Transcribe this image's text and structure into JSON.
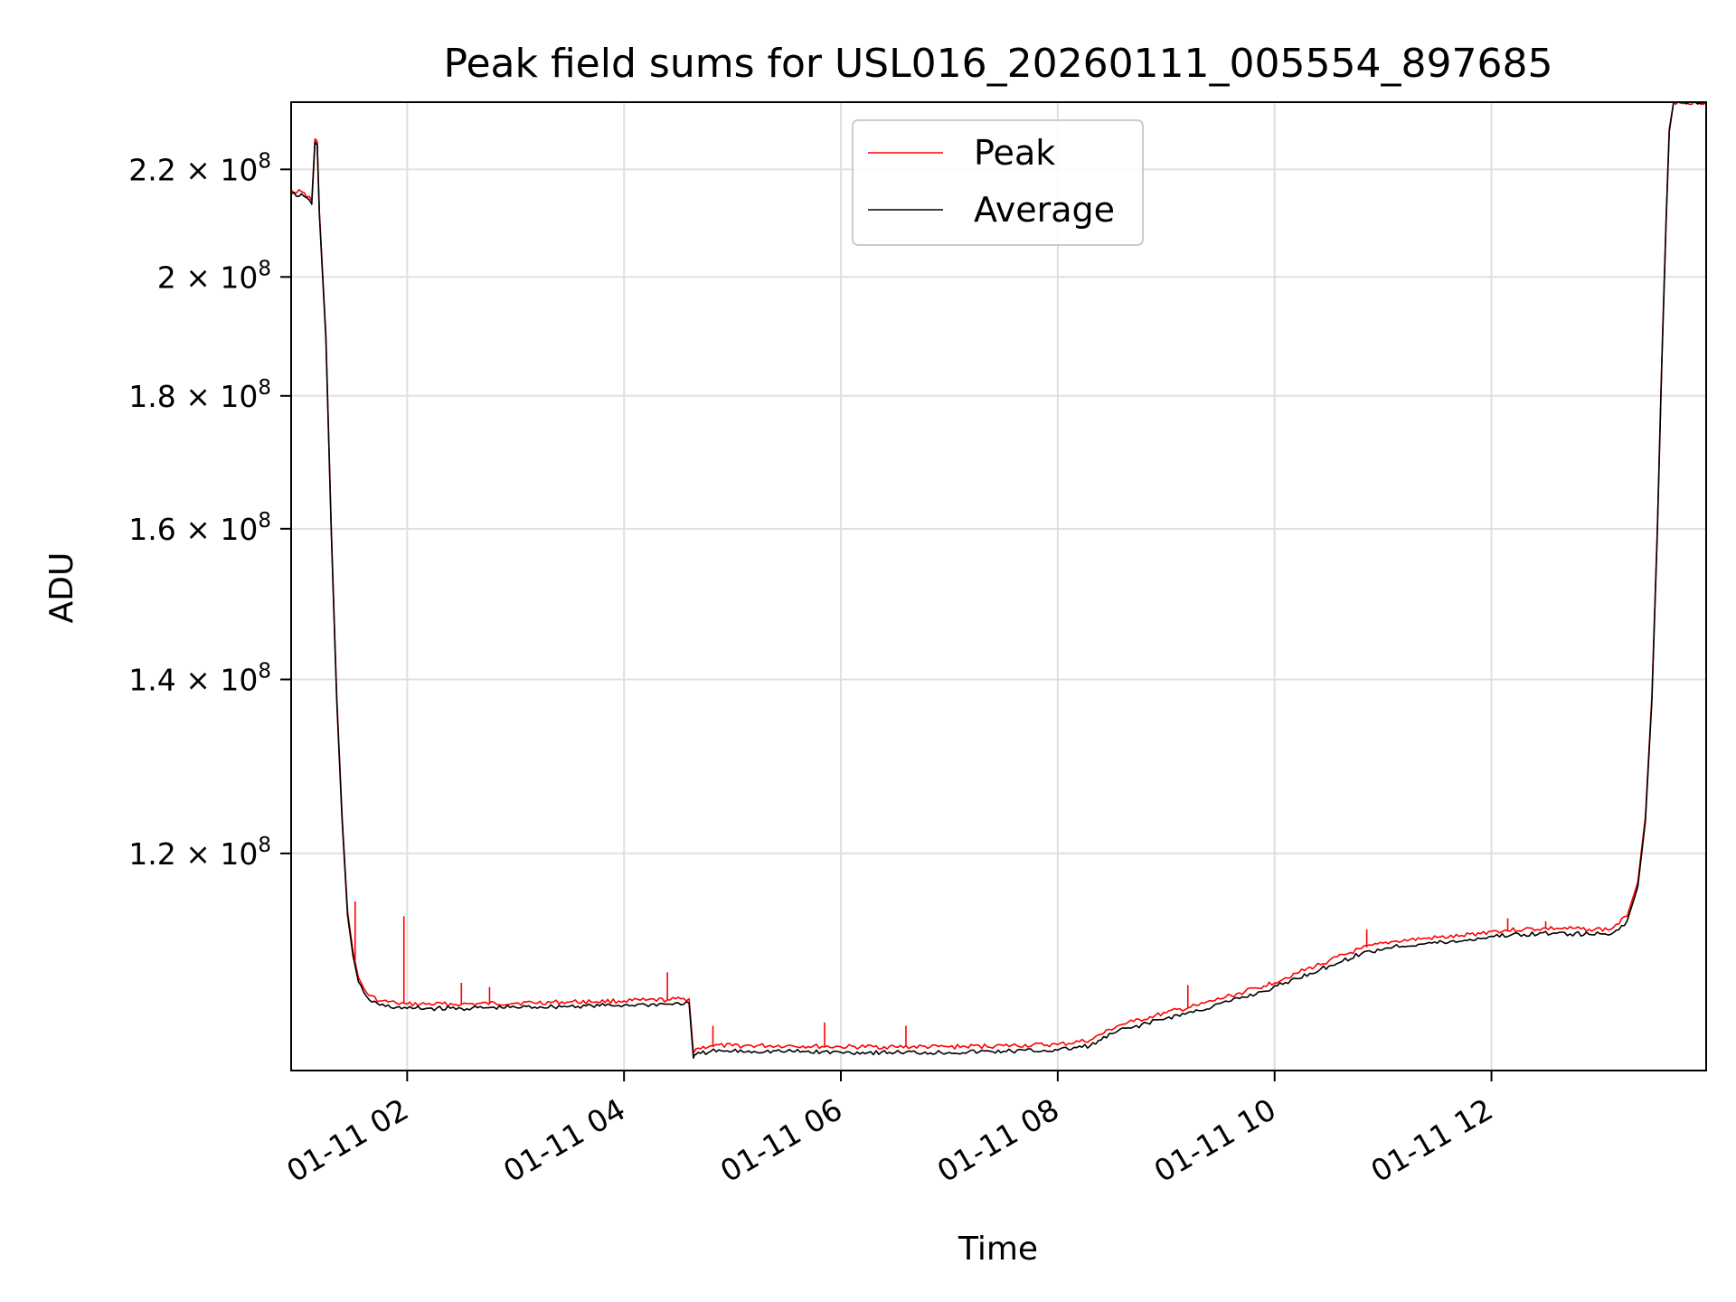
{
  "chart_data": {
    "type": "line",
    "title": "Peak field sums for USL016_20260111_005554_897685",
    "xlabel": "Time",
    "ylabel": "ADU",
    "yscale": "log",
    "grid": true,
    "legend_position": "top-center",
    "x_tick_labels": [
      "01-11 02",
      "01-11 04",
      "01-11 06",
      "01-11 08",
      "01-11 10",
      "01-11 12"
    ],
    "x_ticks_hours": [
      2,
      4,
      6,
      8,
      10,
      12
    ],
    "xlim_hours": [
      0.93,
      13.98
    ],
    "y_ticks": [
      {
        "value": 120000000,
        "mantissa": "1.2",
        "exp": "8"
      },
      {
        "value": 140000000,
        "mantissa": "1.4",
        "exp": "8"
      },
      {
        "value": 160000000,
        "mantissa": "1.6",
        "exp": "8"
      },
      {
        "value": 180000000,
        "mantissa": "1.8",
        "exp": "8"
      },
      {
        "value": 200000000,
        "mantissa": "2",
        "exp": "8"
      },
      {
        "value": 220000000,
        "mantissa": "2.2",
        "exp": "8"
      }
    ],
    "ylim": [
      99000000,
      233500000
    ],
    "series": [
      {
        "name": "Peak",
        "color": "#ff0000",
        "x": [
          0.93,
          1.05,
          1.12,
          1.15,
          1.17,
          1.19,
          1.25,
          1.3,
          1.35,
          1.4,
          1.45,
          1.5,
          1.55,
          1.6,
          1.65,
          1.75,
          1.9,
          2.0,
          2.5,
          3.0,
          3.5,
          4.0,
          4.2,
          4.4,
          4.6,
          4.64,
          4.66,
          4.8,
          5.0,
          5.5,
          6.0,
          6.5,
          7.0,
          7.5,
          8.0,
          8.3,
          8.55,
          8.7,
          9.0,
          9.3,
          9.6,
          9.9,
          10.2,
          10.5,
          10.8,
          11.1,
          11.4,
          11.7,
          12.0,
          12.3,
          12.6,
          12.9,
          13.1,
          13.25,
          13.35,
          13.42,
          13.48,
          13.53,
          13.57,
          13.61,
          13.64,
          13.68,
          13.72,
          13.98
        ],
        "y": [
          216000000,
          215500000,
          214000000,
          226000000,
          225500000,
          212000000,
          190000000,
          160000000,
          138000000,
          124000000,
          114000000,
          110000000,
          107500000,
          106500000,
          105800000,
          105300000,
          105100000,
          105000000,
          105000000,
          105100000,
          105200000,
          105300000,
          105350000,
          105400000,
          105500000,
          100600000,
          100900000,
          101200000,
          101200000,
          101200000,
          101100000,
          101100000,
          101100000,
          101200000,
          101300000,
          101700000,
          103000000,
          103400000,
          104200000,
          104900000,
          105800000,
          106700000,
          107900000,
          109100000,
          110300000,
          111000000,
          111300000,
          111500000,
          112000000,
          112200000,
          112300000,
          112200000,
          112200000,
          113500000,
          117000000,
          124000000,
          138000000,
          160000000,
          185000000,
          210000000,
          228000000,
          233500000,
          233500000,
          233500000
        ]
      },
      {
        "name": "Average",
        "color": "#000000",
        "x": [
          0.93,
          1.05,
          1.12,
          1.15,
          1.17,
          1.19,
          1.25,
          1.3,
          1.35,
          1.4,
          1.45,
          1.5,
          1.55,
          1.6,
          1.65,
          1.75,
          1.9,
          2.0,
          2.5,
          3.0,
          3.5,
          4.0,
          4.2,
          4.4,
          4.6,
          4.64,
          4.66,
          4.8,
          5.0,
          5.5,
          6.0,
          6.5,
          7.0,
          7.5,
          8.0,
          8.3,
          8.55,
          8.7,
          9.0,
          9.3,
          9.6,
          9.9,
          10.2,
          10.5,
          10.8,
          11.1,
          11.4,
          11.7,
          12.0,
          12.3,
          12.6,
          12.9,
          13.1,
          13.25,
          13.35,
          13.42,
          13.48,
          13.53,
          13.57,
          13.61,
          13.64,
          13.68,
          13.72,
          13.98
        ],
        "y": [
          215300000,
          214800000,
          213300000,
          225500000,
          225000000,
          211500000,
          189500000,
          159500000,
          137500000,
          123500000,
          113600000,
          109600000,
          107100000,
          106100000,
          105400000,
          104900000,
          104700000,
          104600000,
          104600000,
          104700000,
          104800000,
          104900000,
          104950000,
          105000000,
          105100000,
          100100000,
          100400000,
          100700000,
          100700000,
          100700000,
          100600000,
          100600000,
          100600000,
          100700000,
          100800000,
          101200000,
          102500000,
          102900000,
          103700000,
          104400000,
          105300000,
          106200000,
          107400000,
          108600000,
          109800000,
          110500000,
          110800000,
          111000000,
          111500000,
          111700000,
          111800000,
          111700000,
          111700000,
          113000000,
          116500000,
          123500000,
          137500000,
          159500000,
          184500000,
          209500000,
          227500000,
          233500000,
          233500000,
          233500000
        ]
      }
    ],
    "spikes": [
      {
        "x": 1.52,
        "y": 115000000
      },
      {
        "x": 1.97,
        "y": 113500000
      },
      {
        "x": 2.5,
        "y": 107000000
      },
      {
        "x": 2.76,
        "y": 106600000
      },
      {
        "x": 4.4,
        "y": 108000000
      },
      {
        "x": 4.82,
        "y": 103000000
      },
      {
        "x": 5.85,
        "y": 103300000
      },
      {
        "x": 6.6,
        "y": 103000000
      },
      {
        "x": 9.2,
        "y": 106800000
      },
      {
        "x": 10.85,
        "y": 112200000
      },
      {
        "x": 12.15,
        "y": 113300000
      },
      {
        "x": 12.5,
        "y": 113000000
      }
    ]
  }
}
